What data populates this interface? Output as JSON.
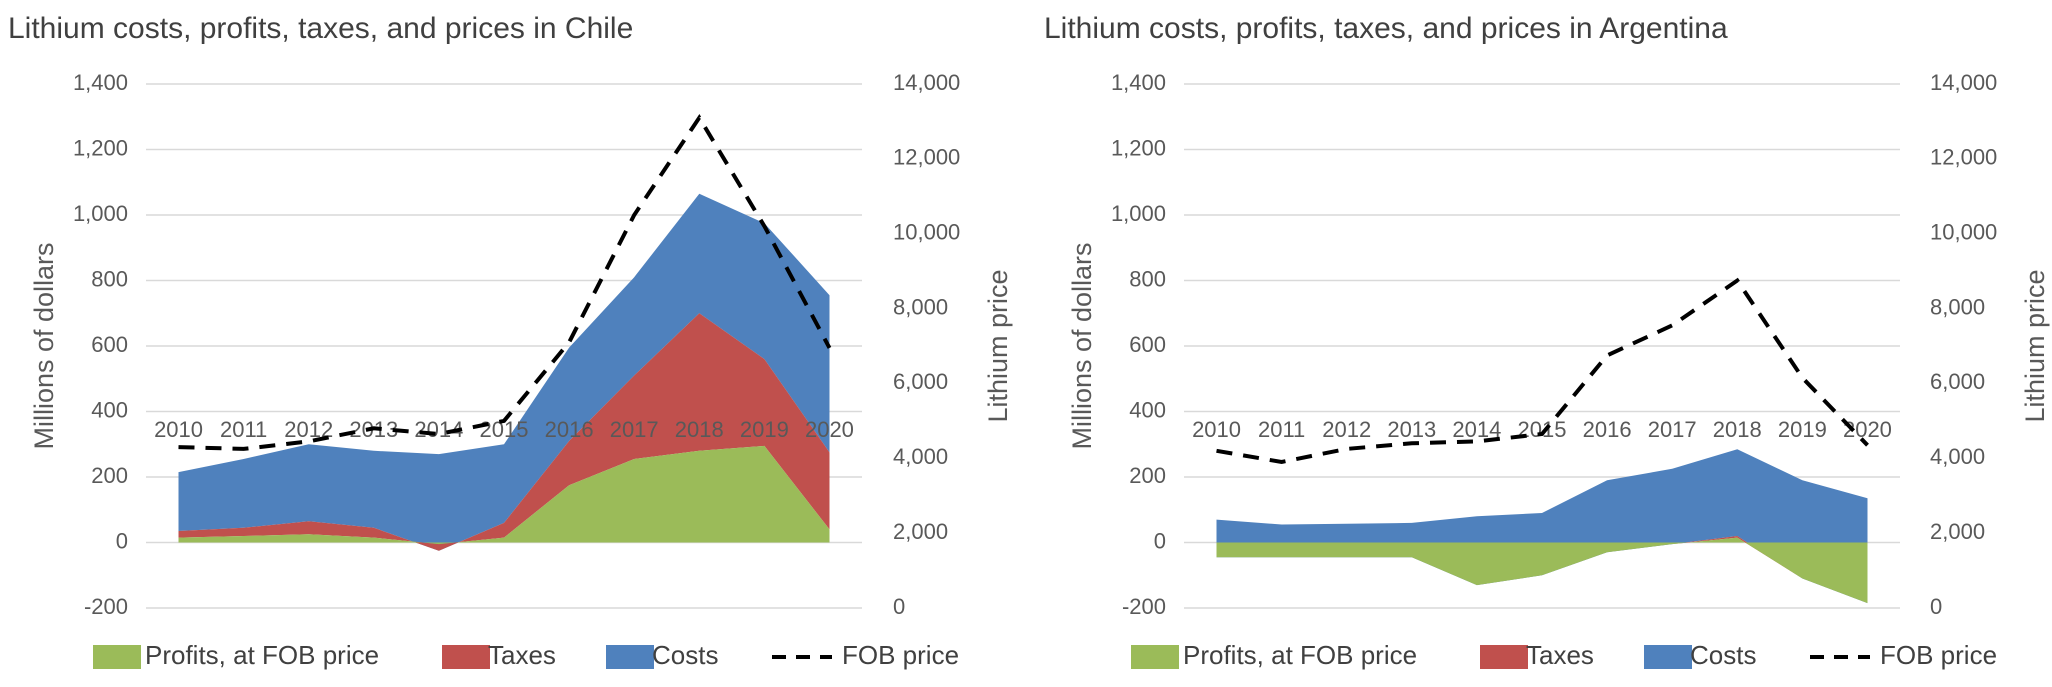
{
  "chart_data": [
    {
      "type": "area",
      "title": "Lithium costs, profits, taxes, and prices in Chile",
      "ylabel": "Millions of dollars",
      "y2label": "Lithium price",
      "xlabel": "",
      "categories": [
        "2010",
        "2011",
        "2012",
        "2013",
        "2014",
        "2015",
        "2016",
        "2017",
        "2018",
        "2019",
        "2020"
      ],
      "ylim": [
        -200,
        1400
      ],
      "y2lim": [
        0,
        14000
      ],
      "yticks": [
        "-200",
        "0",
        "200",
        "400",
        "600",
        "800",
        "1,000",
        "1,200",
        "1,400"
      ],
      "y2ticks": [
        "0",
        "2,000",
        "4,000",
        "6,000",
        "8,000",
        "10,000",
        "12,000",
        "14,000"
      ],
      "stacked": true,
      "grid": true,
      "legend_position": "bottom",
      "series": [
        {
          "name": "Profits, at FOB price",
          "kind": "area",
          "axis": "left",
          "color": "#9bbb59",
          "values": [
            15,
            20,
            25,
            15,
            -5,
            15,
            175,
            255,
            280,
            295,
            40
          ]
        },
        {
          "name": "Taxes",
          "kind": "area",
          "axis": "left",
          "color": "#c0504d",
          "values": [
            20,
            25,
            40,
            30,
            -20,
            45,
            135,
            255,
            420,
            265,
            235
          ]
        },
        {
          "name": "Costs",
          "kind": "area",
          "axis": "left",
          "color": "#4f81bd",
          "values": [
            180,
            210,
            235,
            235,
            295,
            240,
            285,
            300,
            365,
            415,
            480
          ]
        },
        {
          "name": "FOB price",
          "kind": "line",
          "axis": "right",
          "style": "dashed",
          "color": "#000000",
          "values": [
            4300,
            4250,
            4450,
            4800,
            4650,
            5000,
            7100,
            10500,
            13100,
            10200,
            6950
          ]
        }
      ]
    },
    {
      "type": "area",
      "title": "Lithium costs, profits, taxes, and prices in Argentina",
      "ylabel": "Millions of dollars",
      "y2label": "Lithium price",
      "xlabel": "",
      "categories": [
        "2010",
        "2011",
        "2012",
        "2013",
        "2014",
        "2015",
        "2016",
        "2017",
        "2018",
        "2019",
        "2020"
      ],
      "ylim": [
        -200,
        1400
      ],
      "y2lim": [
        0,
        14000
      ],
      "yticks": [
        "-200",
        "0",
        "200",
        "400",
        "600",
        "800",
        "1,000",
        "1,200",
        "1,400"
      ],
      "y2ticks": [
        "0",
        "2,000",
        "4,000",
        "6,000",
        "8,000",
        "10,000",
        "12,000",
        "14,000"
      ],
      "stacked": true,
      "grid": true,
      "legend_position": "bottom",
      "series": [
        {
          "name": "Profits, at FOB price",
          "kind": "area",
          "axis": "left",
          "color": "#9bbb59",
          "values": [
            -45,
            -45,
            -45,
            -45,
            -130,
            -100,
            -30,
            -5,
            15,
            -110,
            -185
          ]
        },
        {
          "name": "Taxes",
          "kind": "area",
          "axis": "left",
          "color": "#c0504d",
          "values": [
            0,
            0,
            0,
            0,
            0,
            0,
            0,
            0,
            5,
            0,
            0
          ]
        },
        {
          "name": "Costs",
          "kind": "area",
          "axis": "left",
          "color": "#4f81bd",
          "values": [
            115,
            100,
            102,
            105,
            210,
            190,
            220,
            230,
            265,
            300,
            320
          ]
        },
        {
          "name": "FOB price",
          "kind": "line",
          "axis": "right",
          "style": "dashed",
          "color": "#000000",
          "values": [
            4200,
            3900,
            4250,
            4400,
            4450,
            4650,
            6750,
            7550,
            8750,
            6150,
            4350
          ]
        }
      ]
    }
  ]
}
